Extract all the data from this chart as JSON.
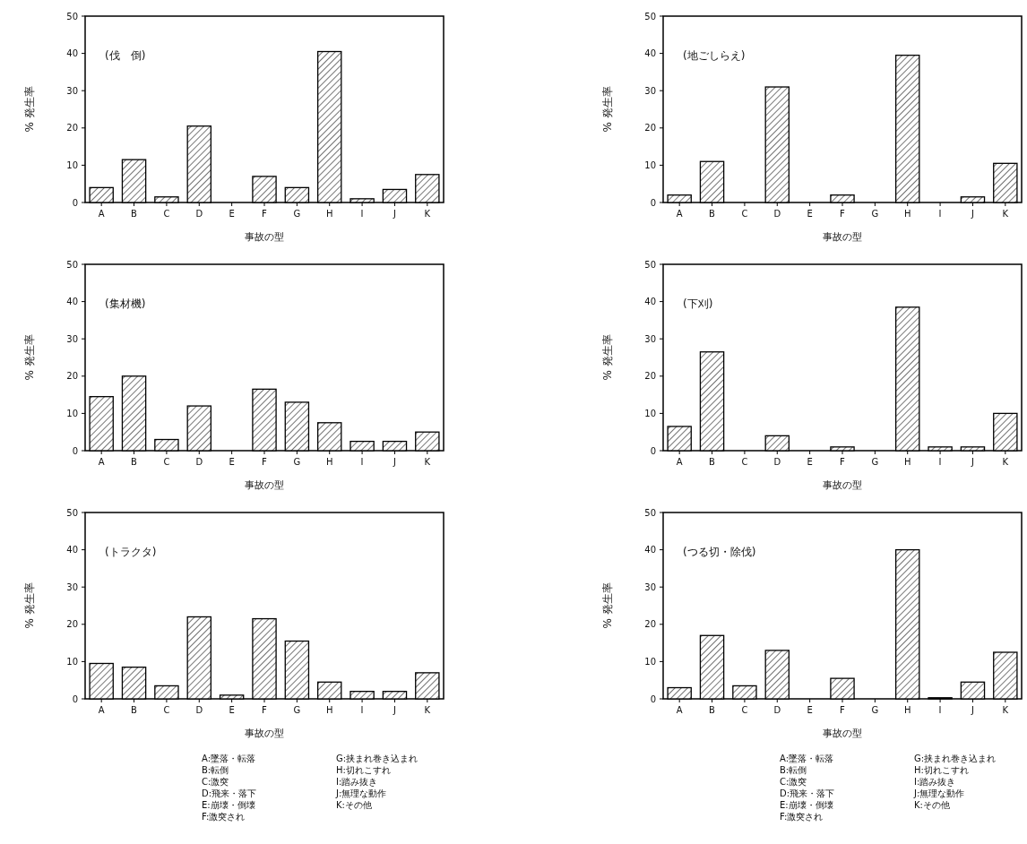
{
  "chart_data": [
    {
      "type": "bar",
      "title": "(伐　倒)",
      "xlabel": "事故の型",
      "ylabel": "% 発生率",
      "categories": [
        "A",
        "B",
        "C",
        "D",
        "E",
        "F",
        "G",
        "H",
        "I",
        "J",
        "K"
      ],
      "values": [
        4,
        11.5,
        1.5,
        20.5,
        0,
        7,
        4,
        40.5,
        1,
        3.5,
        7.5
      ],
      "color": "#000000",
      "ylim": [
        0,
        50
      ],
      "yticks": [
        0,
        10,
        20,
        30,
        40,
        50
      ]
    },
    {
      "type": "bar",
      "title": "(地ごしらえ)",
      "xlabel": "事故の型",
      "ylabel": "% 発生率",
      "categories": [
        "A",
        "B",
        "C",
        "D",
        "E",
        "F",
        "G",
        "H",
        "I",
        "J",
        "K"
      ],
      "values": [
        2,
        11,
        0,
        31,
        0,
        2,
        0,
        39.5,
        0,
        1.5,
        10.5
      ],
      "color": "#000000",
      "ylim": [
        0,
        50
      ],
      "yticks": [
        0,
        10,
        20,
        30,
        40,
        50
      ]
    },
    {
      "type": "bar",
      "title": "(集材機)",
      "xlabel": "事故の型",
      "ylabel": "% 発生率",
      "categories": [
        "A",
        "B",
        "C",
        "D",
        "E",
        "F",
        "G",
        "H",
        "I",
        "J",
        "K"
      ],
      "values": [
        14.5,
        20,
        3,
        12,
        0,
        16.5,
        13,
        7.5,
        2.5,
        2.5,
        5
      ],
      "color": "#000000",
      "ylim": [
        0,
        50
      ],
      "yticks": [
        0,
        10,
        20,
        30,
        40,
        50
      ]
    },
    {
      "type": "bar",
      "title": "(下刈)",
      "xlabel": "事故の型",
      "ylabel": "% 発生率",
      "categories": [
        "A",
        "B",
        "C",
        "D",
        "E",
        "F",
        "G",
        "H",
        "I",
        "J",
        "K"
      ],
      "values": [
        6.5,
        26.5,
        0,
        4,
        0,
        1,
        0,
        38.5,
        1,
        1,
        10
      ],
      "color": "#000000",
      "ylim": [
        0,
        50
      ],
      "yticks": [
        0,
        10,
        20,
        30,
        40,
        50
      ]
    },
    {
      "type": "bar",
      "title": "(トラクタ)",
      "xlabel": "事故の型",
      "ylabel": "% 発生率",
      "categories": [
        "A",
        "B",
        "C",
        "D",
        "E",
        "F",
        "G",
        "H",
        "I",
        "J",
        "K"
      ],
      "values": [
        9.5,
        8.5,
        3.5,
        22,
        1,
        21.5,
        15.5,
        4.5,
        2,
        2,
        7
      ],
      "color": "#000000",
      "ylim": [
        0,
        50
      ],
      "yticks": [
        0,
        10,
        20,
        30,
        40,
        50
      ],
      "annotations": [
        "A:墜落・転落",
        "B:転倒",
        "C:激突",
        "D:飛来・落下",
        "E:崩壊・倒壊",
        "F:激突され",
        "G:挟まれ巻き込まれ",
        "H:切れこすれ",
        "I:踏み抜き",
        "J:無理な動作",
        "K:その他"
      ]
    },
    {
      "type": "bar",
      "title": "(つる切・除伐)",
      "xlabel": "事故の型",
      "ylabel": "% 発生率",
      "categories": [
        "A",
        "B",
        "C",
        "D",
        "E",
        "F",
        "G",
        "H",
        "I",
        "J",
        "K"
      ],
      "values": [
        3,
        17,
        3.5,
        13,
        0,
        5.5,
        0,
        40,
        0.3,
        4.5,
        12.5
      ],
      "color": "#000000",
      "ylim": [
        0,
        50
      ],
      "yticks": [
        0,
        10,
        20,
        30,
        40,
        50
      ],
      "annotations": [
        "A:墜落・転落",
        "B:転倒",
        "C:激突",
        "D:飛来・落下",
        "E:崩壊・倒壊",
        "F:激突され",
        "G:挟まれ巻き込まれ",
        "H:切れこすれ",
        "I:踏み抜き",
        "J:無理な動作",
        "K:その他"
      ]
    }
  ]
}
